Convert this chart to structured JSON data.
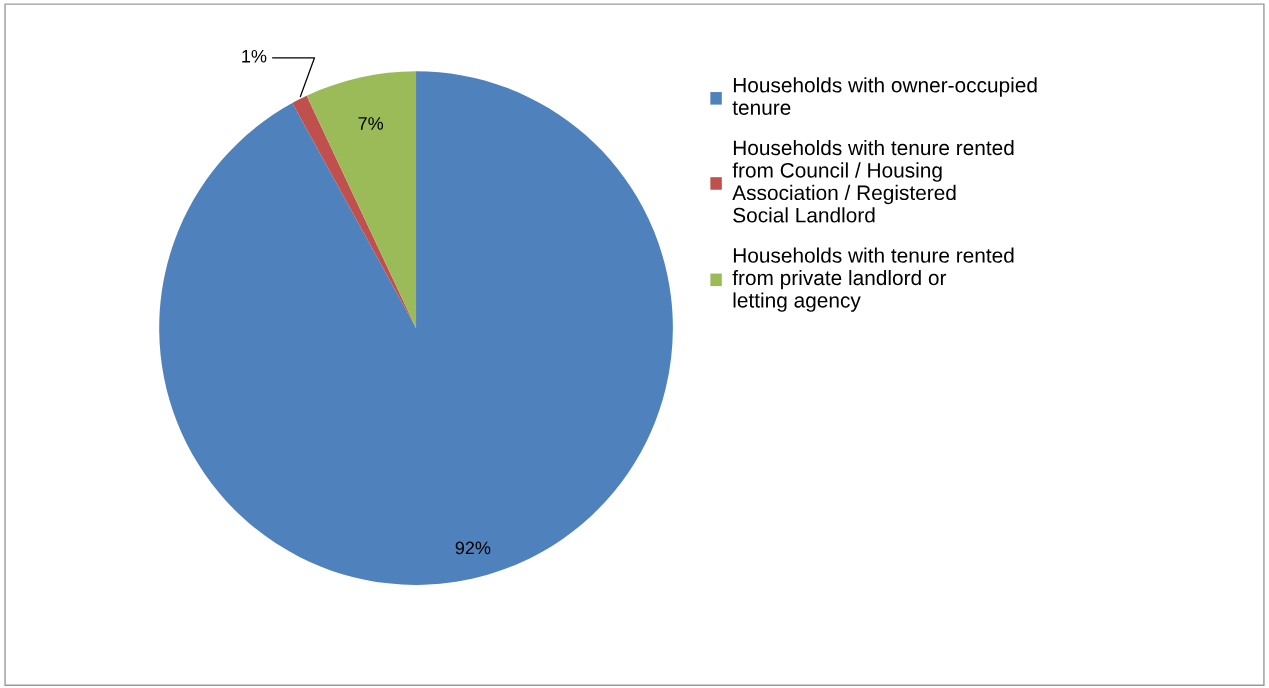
{
  "chart_data": {
    "type": "pie",
    "categories": [
      "Households with owner-occupied tenure",
      "Households with tenure rented from Council / Housing Association / Registered Social Landlord",
      "Households with tenure rented from private landlord or letting agency"
    ],
    "values": [
      92,
      1,
      7
    ],
    "colors": [
      "#4f81bd",
      "#c0504d",
      "#9bbb59"
    ],
    "value_labels": [
      "92%",
      "1%",
      "7%"
    ],
    "legend": "right"
  }
}
